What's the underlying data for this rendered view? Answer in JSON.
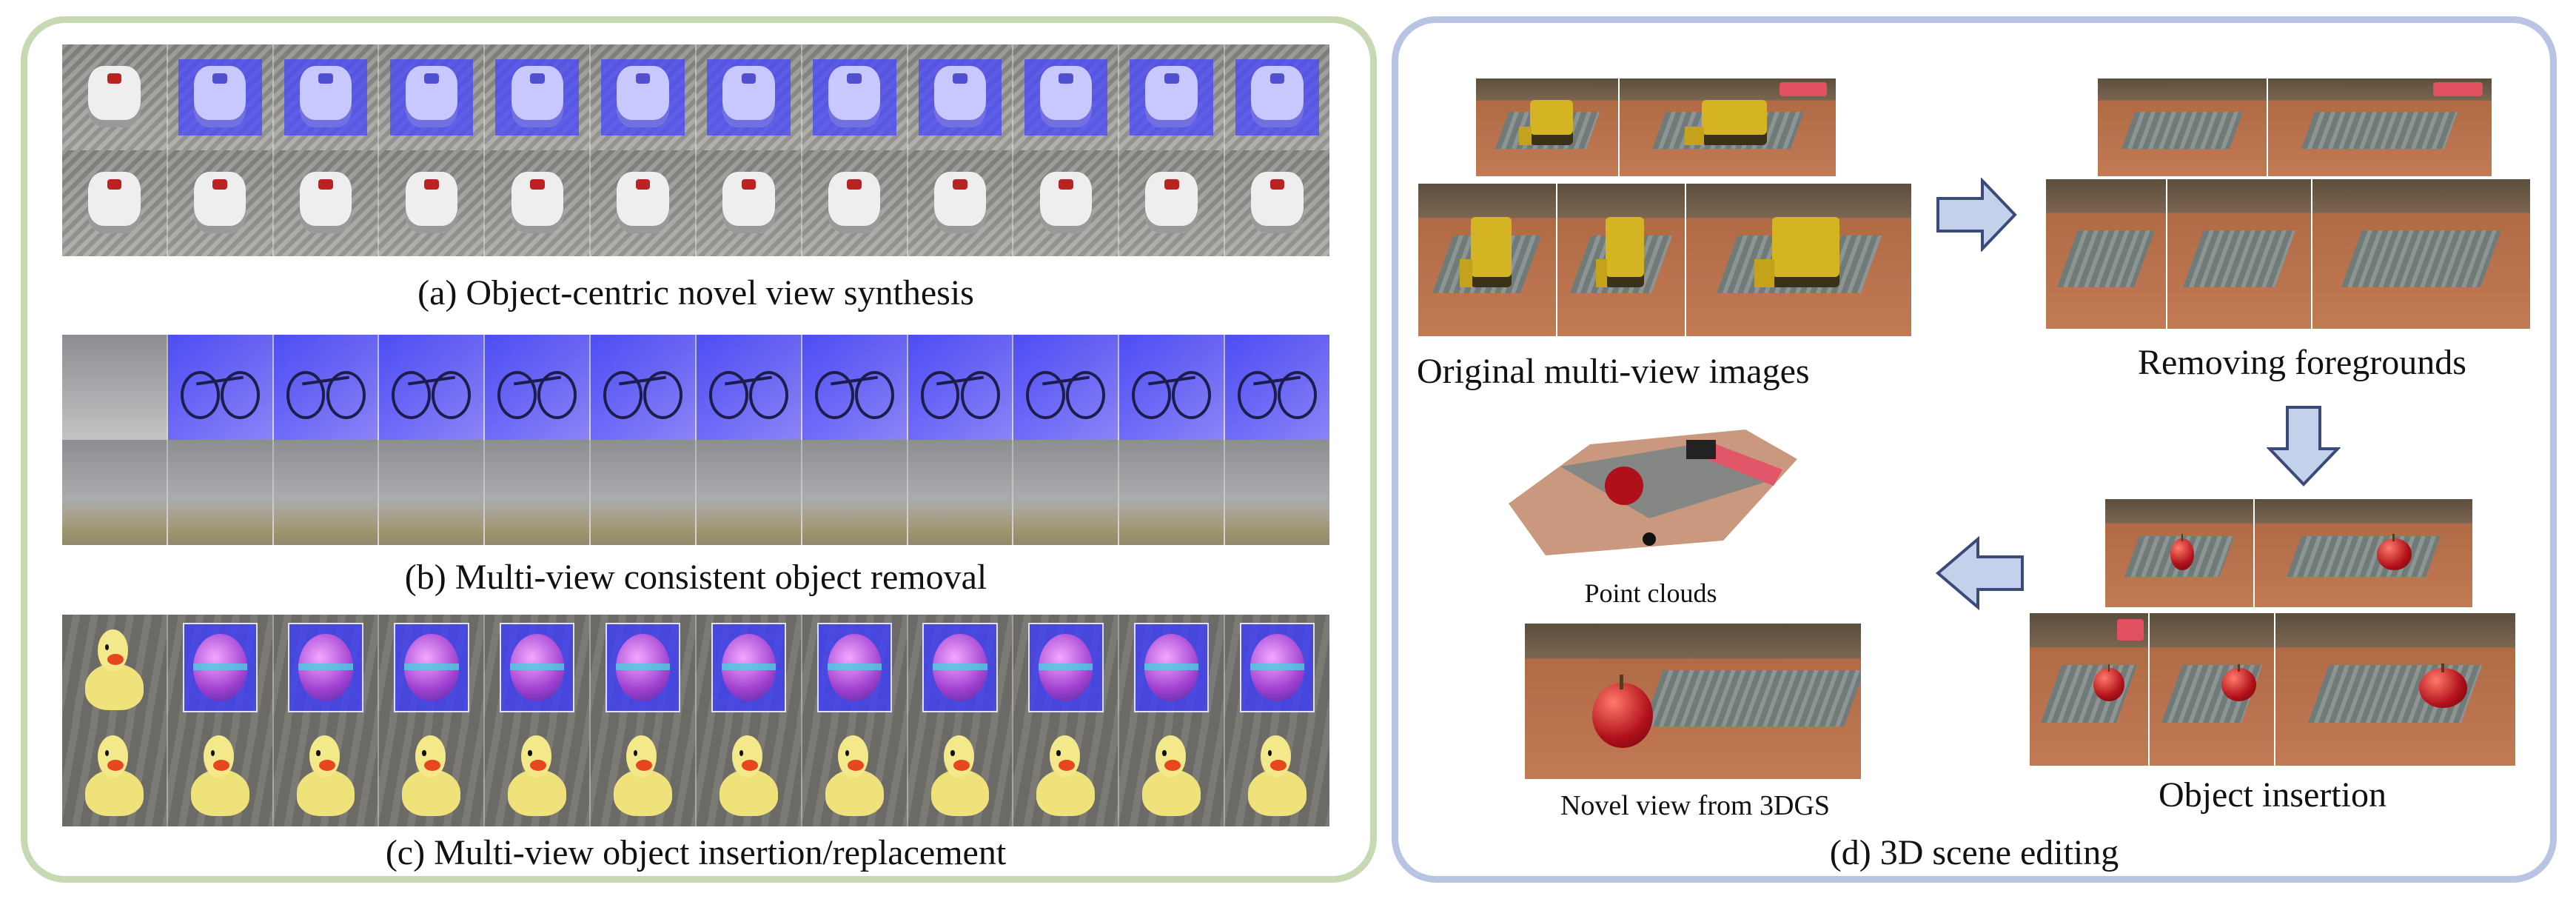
{
  "panels": {
    "left": {
      "captions": {
        "a": "(a) Object-centric novel view synthesis",
        "b": "(b) Multi-view consistent object removal",
        "c": "(c) Multi-view object insertion/replacement"
      }
    },
    "right": {
      "labels": {
        "original": "Original multi-view images",
        "removing": "Removing foregrounds",
        "point_clouds": "Point clouds",
        "novel_view": "Novel view from 3DGS",
        "insertion": "Object insertion"
      },
      "caption": "(d) 3D scene editing"
    }
  },
  "colors": {
    "left_border": "#c7d9b3",
    "right_border": "#b7c4e4",
    "arrow_fill": "#c4d1ea",
    "arrow_stroke": "#3b4a78",
    "mask_blue": "#4646ff"
  }
}
